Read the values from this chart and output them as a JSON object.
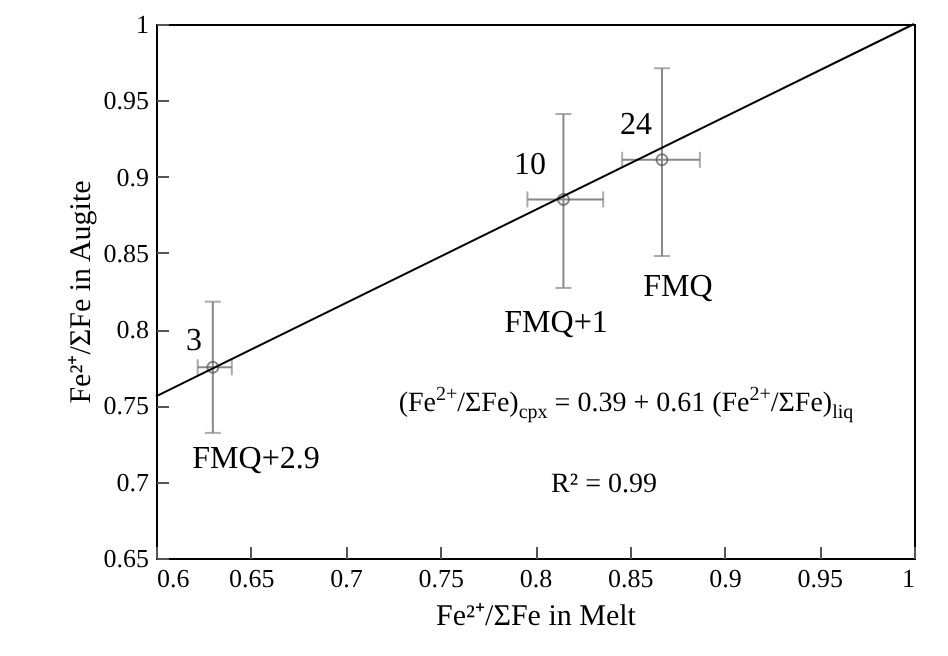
{
  "chart_data": {
    "type": "scatter",
    "xlabel": "Fe²⁺/ΣFe in Melt",
    "ylabel": "Fe²⁺/ΣFe in Augite",
    "xlim": [
      0.6,
      1
    ],
    "xticks": [
      0.6,
      0.65,
      0.7,
      0.75,
      0.8,
      0.85,
      0.9,
      0.95,
      1
    ],
    "ylim": [
      0.65,
      1
    ],
    "yticks": [
      0.65,
      0.7,
      0.75,
      0.8,
      0.85,
      0.9,
      0.95,
      1
    ],
    "grid": false,
    "series": [
      {
        "marker": "circle",
        "color": "#555555",
        "x": [
          0.63,
          0.815,
          0.867
        ],
        "values": [
          0.775,
          0.885,
          0.911
        ],
        "errors": [
          [
            0.732,
            0.818
          ],
          [
            0.827,
            0.941
          ],
          [
            0.848,
            0.971
          ]
        ],
        "xerrors": [
          [
            0.622,
            0.64
          ],
          [
            0.796,
            0.836
          ],
          [
            0.846,
            0.887
          ]
        ]
      },
      {
        "type": "line",
        "color": "#000000",
        "x": [
          0.6,
          1
        ],
        "values": [
          0.756,
          1.0
        ]
      }
    ],
    "annotations": [
      "3",
      "FMQ+2.9",
      "10",
      "FMQ+1",
      "24",
      "FMQ",
      "(Fe$^{2+}$/ΣFe)$_{cpx}$ = 0.39 + 0.61 (Fe$^{2+}$/ΣFe)$_{liq}$",
      "R² = 0.99"
    ]
  }
}
